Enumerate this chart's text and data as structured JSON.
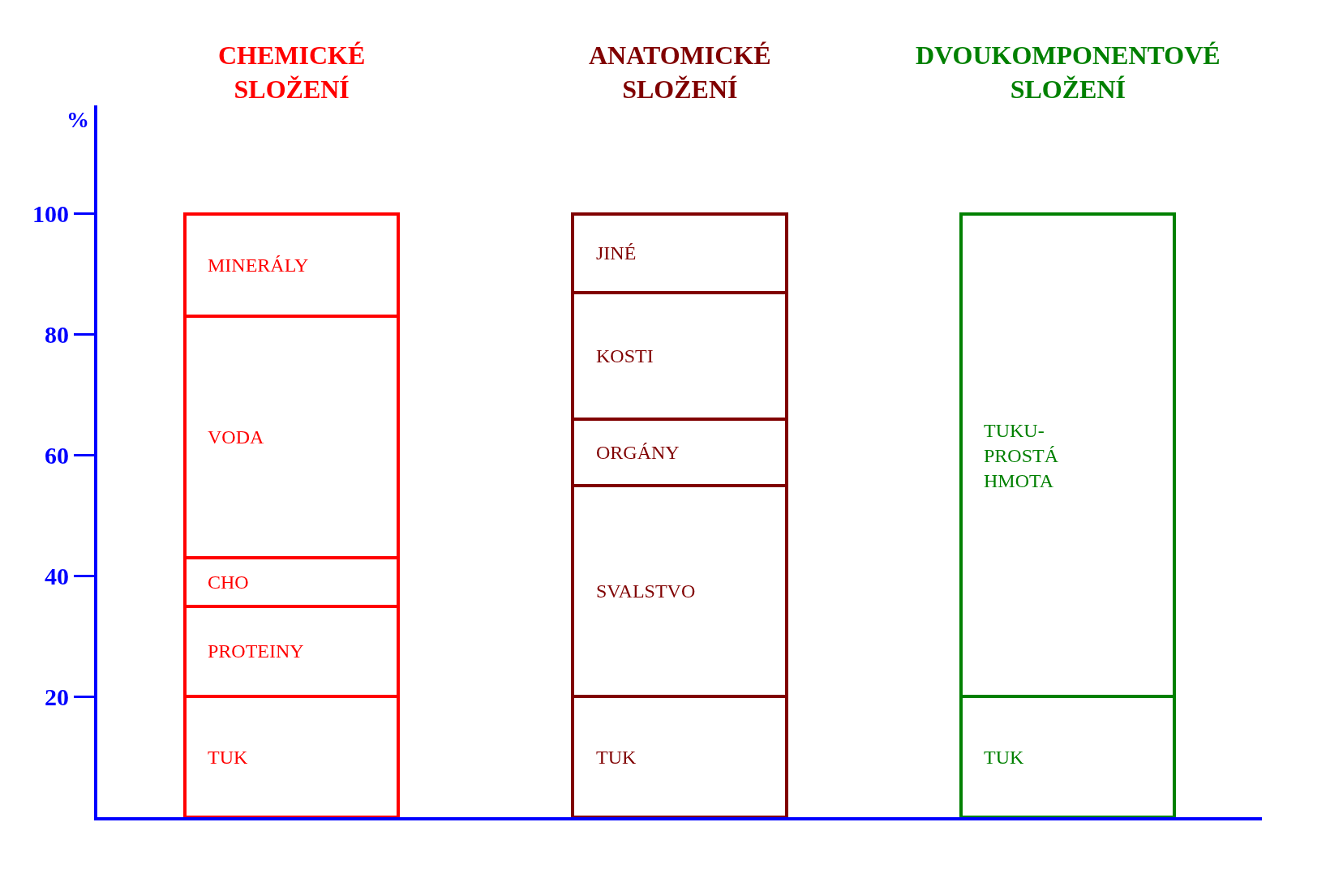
{
  "chart_data": {
    "type": "bar",
    "stacked": true,
    "ylabel": "%",
    "categories": [
      "CHEMICKÉ\nSLOŽENÍ",
      "ANATOMICKÉ\nSLOŽENÍ",
      "DVOUKOMPONENTOVÉ\nSLOŽENÍ"
    ],
    "series": [
      {
        "colors": [
          "#ff0000",
          "#800000",
          "#008000"
        ],
        "values": [
          20,
          20,
          20
        ],
        "value_labels": [
          "TUK",
          "TUK",
          "TUK"
        ]
      },
      {
        "colors": [
          "#ff0000",
          "#800000",
          "#008000"
        ],
        "values": [
          15,
          35,
          80
        ],
        "value_labels": [
          "PROTEINY",
          "SVALSTVO",
          "TUKU-\nPROSTÁ\nHMOTA"
        ]
      },
      {
        "colors": [
          "#ff0000",
          "#800000",
          "#008000"
        ],
        "values": [
          8,
          11,
          null
        ],
        "value_labels": [
          "CHO",
          "ORGÁNY",
          null
        ]
      },
      {
        "colors": [
          "#ff0000",
          "#800000",
          "#008000"
        ],
        "values": [
          40,
          21,
          null
        ],
        "value_labels": [
          "VODA",
          "KOSTI",
          null
        ]
      },
      {
        "colors": [
          "#ff0000",
          "#800000",
          "#008000"
        ],
        "values": [
          17,
          13,
          null
        ],
        "value_labels": [
          "MINERÁLY",
          "JINÉ",
          null
        ]
      }
    ],
    "ylim": [
      0,
      118
    ],
    "yticks": [
      20,
      40,
      60,
      80,
      100
    ]
  }
}
